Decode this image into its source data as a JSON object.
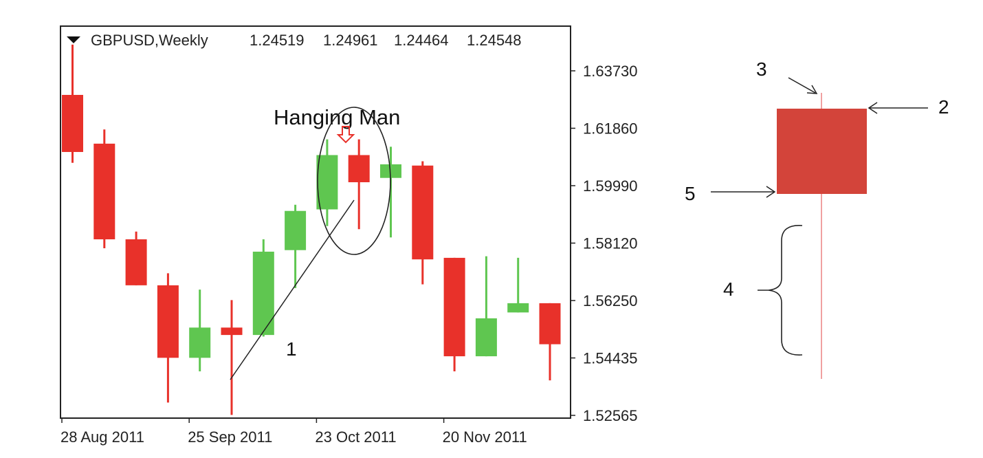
{
  "chart_data": {
    "type": "candlestick",
    "header": {
      "symbol": "GBPUSD,Weekly",
      "open": "1.24519",
      "high": "1.24961",
      "low": "1.24464",
      "close": "1.24548"
    },
    "y_ticks": [
      "1.63730",
      "1.61860",
      "1.59990",
      "1.58120",
      "1.56250",
      "1.54435",
      "1.52565"
    ],
    "x_ticks": [
      {
        "label": "28 Aug 2011",
        "index": 0
      },
      {
        "label": "25 Sep 2011",
        "index": 4
      },
      {
        "label": "23 Oct 2011",
        "index": 8
      },
      {
        "label": "20 Nov 2011",
        "index": 12
      }
    ],
    "ylim": [
      1.52565,
      1.6458
    ],
    "candles": [
      {
        "open": 1.6295,
        "close": 1.611,
        "high": 1.6458,
        "low": 1.6075
      },
      {
        "open": 1.6137,
        "close": 1.5827,
        "high": 1.6183,
        "low": 1.5798
      },
      {
        "open": 1.5827,
        "close": 1.5678,
        "high": 1.5852,
        "low": 1.5678
      },
      {
        "open": 1.5678,
        "close": 1.5443,
        "high": 1.5717,
        "low": 1.5298
      },
      {
        "open": 1.5443,
        "close": 1.5541,
        "high": 1.5664,
        "low": 1.5399
      },
      {
        "open": 1.5541,
        "close": 1.5517,
        "high": 1.563,
        "low": 1.5258
      },
      {
        "open": 1.5517,
        "close": 1.5787,
        "high": 1.5827,
        "low": 1.5512
      },
      {
        "open": 1.5792,
        "close": 1.5919,
        "high": 1.5939,
        "low": 1.5669
      },
      {
        "open": 1.5924,
        "close": 1.61,
        "high": 1.6151,
        "low": 1.587
      },
      {
        "open": 1.61,
        "close": 1.6012,
        "high": 1.6151,
        "low": 1.586
      },
      {
        "open": 1.6026,
        "close": 1.607,
        "high": 1.6127,
        "low": 1.5833
      },
      {
        "open": 1.6066,
        "close": 1.5762,
        "high": 1.608,
        "low": 1.5681
      },
      {
        "open": 1.5767,
        "close": 1.5448,
        "high": 1.5767,
        "low": 1.5399
      },
      {
        "open": 1.5448,
        "close": 1.5571,
        "high": 1.5772,
        "low": 1.5448
      },
      {
        "open": 1.559,
        "close": 1.562,
        "high": 1.5767,
        "low": 1.559
      },
      {
        "open": 1.562,
        "close": 1.5487,
        "high": 1.562,
        "low": 1.537
      }
    ],
    "colors": {
      "up": "#5fc650",
      "down": "#e8312a",
      "diagram_body": "#d3443a",
      "diagram_wick": "#f0a0a0"
    },
    "annotations": {
      "title": "Hanging Man",
      "label_1": "1",
      "label_2": "2",
      "label_3": "3",
      "label_4": "4",
      "label_5": "5"
    }
  }
}
